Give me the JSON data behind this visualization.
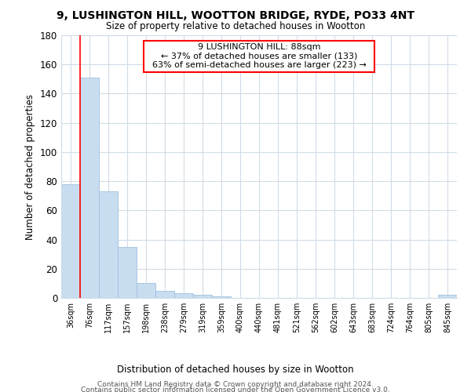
{
  "title1": "9, LUSHINGTON HILL, WOOTTON BRIDGE, RYDE, PO33 4NT",
  "title2": "Size of property relative to detached houses in Wootton",
  "xlabel": "Distribution of detached houses by size in Wootton",
  "ylabel": "Number of detached properties",
  "bin_labels": [
    "36sqm",
    "76sqm",
    "117sqm",
    "157sqm",
    "198sqm",
    "238sqm",
    "279sqm",
    "319sqm",
    "359sqm",
    "400sqm",
    "440sqm",
    "481sqm",
    "521sqm",
    "562sqm",
    "602sqm",
    "643sqm",
    "683sqm",
    "724sqm",
    "764sqm",
    "805sqm",
    "845sqm"
  ],
  "bar_heights": [
    78,
    151,
    73,
    35,
    10,
    5,
    3,
    2,
    1,
    0,
    0,
    0,
    0,
    0,
    0,
    0,
    0,
    0,
    0,
    0,
    2
  ],
  "bar_color": "#c8ddf0",
  "bar_edge_color": "#a0c0de",
  "ylim": [
    0,
    180
  ],
  "yticks": [
    0,
    20,
    40,
    60,
    80,
    100,
    120,
    140,
    160,
    180
  ],
  "red_line_x": 0.5,
  "annotation_title": "9 LUSHINGTON HILL: 88sqm",
  "annotation_line1": "← 37% of detached houses are smaller (133)",
  "annotation_line2": "63% of semi-detached houses are larger (223) →",
  "footer1": "Contains HM Land Registry data © Crown copyright and database right 2024.",
  "footer2": "Contains public sector information licensed under the Open Government Licence v3.0.",
  "background_color": "#ffffff",
  "plot_bg_color": "#ffffff",
  "grid_color": "#d0dce8"
}
